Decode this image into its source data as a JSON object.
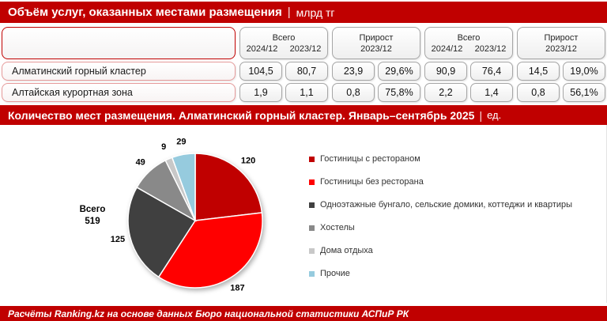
{
  "header1": {
    "title": "Объём услуг, оказанных местами размещения",
    "separator": "|",
    "unit": "млрд тг"
  },
  "table": {
    "groups": [
      {
        "name": "Всего",
        "sub": [
          "2024/12",
          "2023/12"
        ]
      },
      {
        "name": "Прирост",
        "sub": [
          "2023/12"
        ]
      },
      {
        "name": "Всего",
        "sub": [
          "2024/12",
          "2023/12"
        ]
      },
      {
        "name": "Прирост",
        "sub": [
          "2023/12"
        ]
      }
    ],
    "rows": [
      {
        "label": "Алматинский горный кластер",
        "values": [
          "104,5",
          "80,7",
          "23,9",
          "29,6%",
          "90,9",
          "76,4",
          "14,5",
          "19,0%"
        ]
      },
      {
        "label": "Алтайская курортная зона",
        "values": [
          "1,9",
          "1,1",
          "0,8",
          "75,8%",
          "2,2",
          "1,4",
          "0,8",
          "56,1%"
        ]
      }
    ]
  },
  "header2": {
    "title": "Количество мест размещения. Алматинский горный кластер. Январь–сентябрь 2025",
    "separator": "|",
    "unit": "ед."
  },
  "chart_data": {
    "type": "pie",
    "title": "Количество мест размещения. Алматинский горный кластер. Январь–сентябрь 2025",
    "unit": "ед.",
    "labels": [
      "Гостиницы с рестораном",
      "Гостиницы без ресторана",
      "Одноэтажные бунгало, сельские домики, коттеджи и квартиры",
      "Хостелы",
      "Дома отдыха",
      "Прочие"
    ],
    "values": [
      120,
      187,
      125,
      49,
      9,
      29
    ],
    "colors": [
      "#c00000",
      "#ff0000",
      "#404040",
      "#898989",
      "#c8c8c8",
      "#96cbde"
    ],
    "total_label": "Всего",
    "total_value": "519",
    "start_angle": "top",
    "direction": "clockwise",
    "legend_position": "right",
    "data_labels": "outside"
  },
  "footer": {
    "text": "Расчёты Ranking.kz на основе данных Бюро национальной статистики АСПиР РК"
  }
}
